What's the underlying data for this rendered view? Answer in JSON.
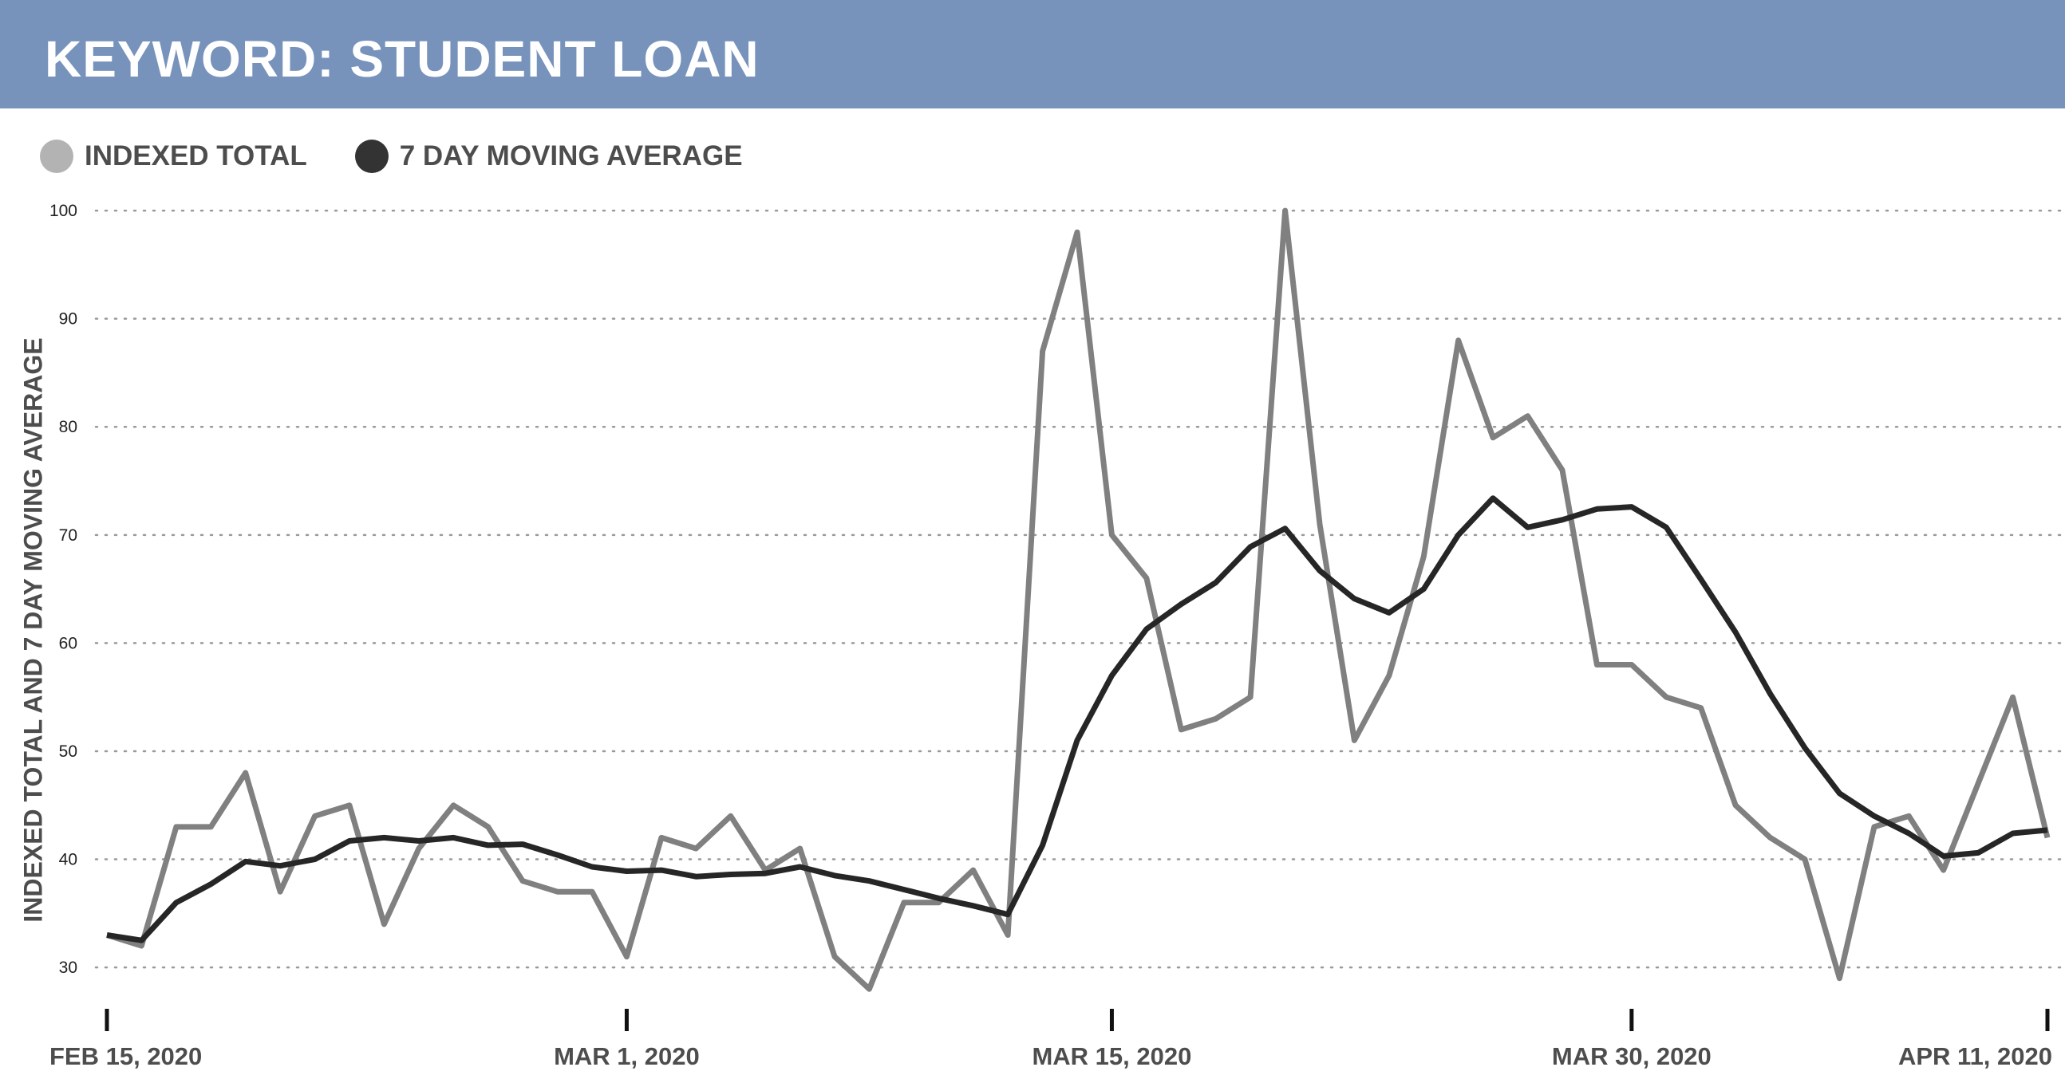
{
  "header": {
    "title": "KEYWORD: STUDENT LOAN",
    "background": "#7793bb"
  },
  "legend": [
    {
      "label": "INDEXED TOTAL",
      "color": "#b3b3b3",
      "icon": "circle-icon"
    },
    {
      "label": "7 DAY MOVING AVERAGE",
      "color": "#333333",
      "icon": "circle-icon"
    }
  ],
  "axes": {
    "ylabel": "INDEXED TOTAL AND 7 DAY MOVING AVERAGE",
    "yticks": [
      100,
      90,
      80,
      70,
      60,
      50,
      40,
      30
    ],
    "xticks": [
      {
        "label": "FEB 15, 2020",
        "index": 0
      },
      {
        "label": "MAR 1, 2020",
        "index": 15
      },
      {
        "label": "MAR 15, 2020",
        "index": 29
      },
      {
        "label": "MAR 30, 2020",
        "index": 44
      },
      {
        "label": "APR 11, 2020",
        "index": 56
      }
    ]
  },
  "chart_data": {
    "type": "line",
    "title": "KEYWORD: STUDENT LOAN",
    "xlabel": "",
    "ylabel": "INDEXED TOTAL AND 7 DAY MOVING AVERAGE",
    "ylim": [
      30,
      100
    ],
    "grid": true,
    "legend_position": "top-left",
    "x_start": "2020-02-15",
    "x_end": "2020-04-11",
    "x_tick_labels": [
      "FEB 15, 2020",
      "MAR 1, 2020",
      "MAR 15, 2020",
      "MAR 30, 2020",
      "APR 11, 2020"
    ],
    "series": [
      {
        "name": "INDEXED TOTAL",
        "color": "#808080",
        "values": [
          33,
          32,
          43,
          43,
          48,
          37,
          44,
          45,
          34,
          41,
          45,
          43,
          38,
          37,
          37,
          31,
          42,
          41,
          44,
          39,
          41,
          31,
          28,
          36,
          36,
          39,
          33,
          87,
          98,
          70,
          66,
          52,
          53,
          55,
          100,
          71,
          51,
          57,
          68,
          88,
          79,
          81,
          76,
          58,
          58,
          55,
          54,
          45,
          42,
          40,
          29,
          43,
          44,
          39,
          47,
          55,
          42
        ]
      },
      {
        "name": "7 DAY MOVING AVERAGE",
        "color": "#262626",
        "values": [
          33,
          32.5,
          36,
          37.7,
          39.8,
          39.4,
          40,
          41.7,
          42,
          41.7,
          42,
          41.3,
          41.4,
          40.4,
          39.3,
          38.9,
          39,
          38.4,
          38.6,
          38.7,
          39.3,
          38.5,
          38,
          37.2,
          36.4,
          35.7,
          34.9,
          41.3,
          51,
          57,
          61.3,
          63.6,
          65.6,
          68.9,
          70.6,
          66.7,
          64.1,
          62.8,
          65,
          70,
          73.4,
          70.7,
          71.4,
          72.4,
          72.6,
          70.7,
          65.9,
          61,
          55.3,
          50.3,
          46.1,
          44,
          42.4,
          40.3,
          40.6,
          42.4,
          42.7
        ]
      }
    ]
  }
}
